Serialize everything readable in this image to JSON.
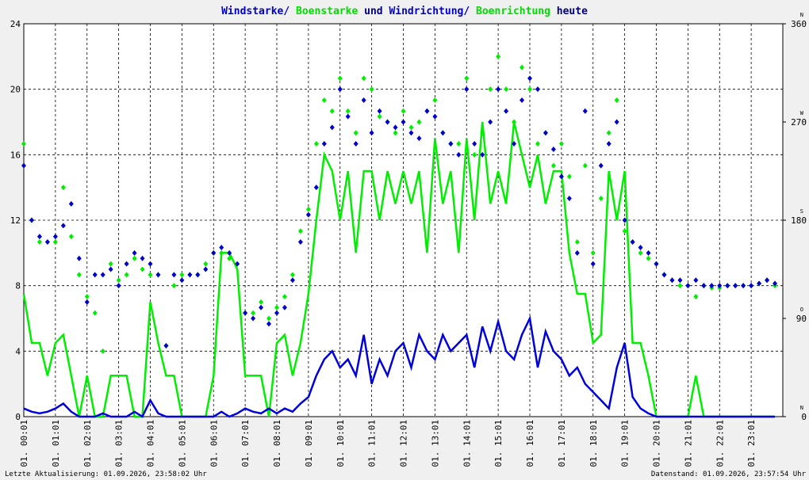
{
  "chart_data": {
    "type": "line",
    "title_parts": [
      {
        "text": "Windstarke/",
        "color": "#0000cc"
      },
      {
        "text": "Boenstarke",
        "color": "#00dd00"
      },
      {
        "text": "und",
        "color": "#000080"
      },
      {
        "text": "Windrichtung/",
        "color": "#0000cc"
      },
      {
        "text": "Boenrichtung",
        "color": "#00dd00"
      },
      {
        "text": "heute",
        "color": "#000080"
      }
    ],
    "footer_left": "Letzte Aktualisierung: 01.09.2026, 23:58:02 Uhr",
    "footer_right": "Datenstand: 01.09.2026, 23:57:54 Uhr",
    "grid": true,
    "xlim": [
      0,
      24
    ],
    "xticks": [
      {
        "value": 0,
        "label": "01. 00:01"
      },
      {
        "value": 1,
        "label": "01. 01:01"
      },
      {
        "value": 2,
        "label": "01. 02:01"
      },
      {
        "value": 3,
        "label": "01. 03:01"
      },
      {
        "value": 4,
        "label": "01. 04:01"
      },
      {
        "value": 5,
        "label": "01. 05:01"
      },
      {
        "value": 6,
        "label": "01. 06:01"
      },
      {
        "value": 7,
        "label": "01. 07:01"
      },
      {
        "value": 8,
        "label": "01. 08:01"
      },
      {
        "value": 9,
        "label": "01. 09:01"
      },
      {
        "value": 10,
        "label": "01. 10:01"
      },
      {
        "value": 11,
        "label": "01. 11:01"
      },
      {
        "value": 12,
        "label": "01. 12:01"
      },
      {
        "value": 13,
        "label": "01. 13:01"
      },
      {
        "value": 14,
        "label": "01. 14:01"
      },
      {
        "value": 15,
        "label": "01. 15:01"
      },
      {
        "value": 16,
        "label": "01. 16:01"
      },
      {
        "value": 17,
        "label": "01. 17:01"
      },
      {
        "value": 18,
        "label": "01. 18:01"
      },
      {
        "value": 19,
        "label": "01. 19:01"
      },
      {
        "value": 20,
        "label": "01. 20:01"
      },
      {
        "value": 21,
        "label": "01. 21:01"
      },
      {
        "value": 22,
        "label": "01. 22:01"
      },
      {
        "value": 23,
        "label": "01. 23:01"
      }
    ],
    "ylim": [
      0,
      24
    ],
    "yticks": [
      0,
      4,
      8,
      12,
      16,
      20,
      24
    ],
    "y2lim": [
      0,
      360
    ],
    "y2ticks": [
      0,
      90,
      180,
      270,
      360
    ],
    "y2tick_directions": [
      "N",
      "O",
      "S",
      "W",
      "N"
    ],
    "x": [
      0,
      0.25,
      0.5,
      0.75,
      1,
      1.25,
      1.5,
      1.75,
      2,
      2.25,
      2.5,
      2.75,
      3,
      3.25,
      3.5,
      3.75,
      4,
      4.25,
      4.5,
      4.75,
      5,
      5.25,
      5.5,
      5.75,
      6,
      6.25,
      6.5,
      6.75,
      7,
      7.25,
      7.5,
      7.75,
      8,
      8.25,
      8.5,
      8.75,
      9,
      9.25,
      9.5,
      9.75,
      10,
      10.25,
      10.5,
      10.75,
      11,
      11.25,
      11.5,
      11.75,
      12,
      12.25,
      12.5,
      12.75,
      13,
      13.25,
      13.5,
      13.75,
      14,
      14.25,
      14.5,
      14.75,
      15,
      15.25,
      15.5,
      15.75,
      16,
      16.25,
      16.5,
      16.75,
      17,
      17.25,
      17.5,
      17.75,
      18,
      18.25,
      18.5,
      18.75,
      19,
      19.25,
      19.5,
      19.75,
      20,
      20.25,
      20.5,
      20.75,
      21,
      21.25,
      21.5,
      21.75,
      22,
      22.25,
      22.5,
      22.75,
      23,
      23.25,
      23.5,
      23.75
    ],
    "series": [
      {
        "name": "Boenstarke",
        "kind": "line",
        "color": "#00ee00",
        "values": [
          7.5,
          4.5,
          4.5,
          2.5,
          4.5,
          5,
          2.5,
          0,
          2.5,
          0,
          0,
          2.5,
          2.5,
          2.5,
          0,
          0,
          7,
          4.5,
          2.5,
          2.5,
          0,
          0,
          0,
          0,
          2.5,
          10,
          10,
          9,
          2.5,
          2.5,
          2.5,
          0,
          4.5,
          5,
          2.5,
          4.5,
          7.5,
          12,
          16,
          15,
          12,
          15,
          10,
          15,
          15,
          12,
          15,
          13,
          15,
          13,
          15,
          10,
          17,
          13,
          15,
          10,
          17,
          12,
          18,
          13,
          15,
          13,
          18,
          16,
          14,
          16,
          13,
          15,
          15,
          10,
          7.5,
          7.5,
          4.5,
          5,
          15,
          12,
          15,
          4.5,
          4.5,
          2.5,
          0,
          0,
          0,
          0,
          0,
          2.5,
          0,
          0,
          0,
          0,
          0,
          0,
          0,
          0,
          0,
          0
        ]
      },
      {
        "name": "Windstarke",
        "kind": "line",
        "color": "#0000dd",
        "values": [
          0.5,
          0.3,
          0.2,
          0.3,
          0.5,
          0.8,
          0.3,
          0,
          0,
          0,
          0.2,
          0,
          0,
          0,
          0.3,
          0,
          1,
          0.2,
          0,
          0,
          0,
          0,
          0,
          0,
          0,
          0.3,
          0,
          0.2,
          0.5,
          0.3,
          0.2,
          0.5,
          0.2,
          0.5,
          0.3,
          0.8,
          1.2,
          2.5,
          3.5,
          4,
          3,
          3.5,
          2.5,
          5,
          2,
          3.5,
          2.5,
          4,
          4.5,
          3,
          5,
          4,
          3.5,
          5,
          4,
          4.5,
          5,
          3,
          5.5,
          4,
          5.8,
          4,
          3.5,
          5,
          6,
          3,
          5.2,
          4,
          3.5,
          2.5,
          3,
          2,
          1.5,
          1,
          0.5,
          3,
          4.5,
          1.2,
          0.5,
          0.2,
          0,
          0,
          0,
          0,
          0,
          0,
          0,
          0,
          0,
          0,
          0,
          0,
          0,
          0,
          0,
          0
        ]
      },
      {
        "name": "Boenrichtung",
        "kind": "points",
        "axis": "y2",
        "color": "#00ee00",
        "values": [
          250,
          180,
          160,
          160,
          160,
          210,
          165,
          130,
          110,
          95,
          60,
          140,
          125,
          130,
          145,
          135,
          130,
          130,
          65,
          120,
          130,
          130,
          130,
          140,
          150,
          150,
          145,
          140,
          95,
          95,
          105,
          90,
          100,
          110,
          130,
          170,
          190,
          250,
          290,
          280,
          310,
          280,
          260,
          310,
          300,
          275,
          270,
          260,
          280,
          265,
          270,
          280,
          290,
          260,
          250,
          250,
          310,
          240,
          260,
          300,
          330,
          300,
          270,
          320,
          300,
          250,
          260,
          230,
          250,
          220,
          160,
          230,
          150,
          200,
          260,
          290,
          170,
          160,
          150,
          145,
          140,
          130,
          125,
          120,
          120,
          110,
          120,
          118,
          118,
          120,
          120,
          120,
          120,
          122,
          125,
          120
        ]
      },
      {
        "name": "Windrichtung",
        "kind": "points",
        "axis": "y2",
        "color": "#0000cc",
        "values": [
          230,
          180,
          165,
          160,
          165,
          175,
          195,
          145,
          105,
          130,
          130,
          135,
          120,
          140,
          150,
          145,
          140,
          130,
          65,
          130,
          125,
          130,
          130,
          135,
          150,
          155,
          150,
          140,
          95,
          90,
          100,
          85,
          95,
          100,
          125,
          160,
          185,
          210,
          250,
          265,
          300,
          275,
          250,
          290,
          260,
          280,
          270,
          265,
          270,
          260,
          255,
          280,
          275,
          260,
          250,
          240,
          300,
          250,
          240,
          270,
          300,
          280,
          250,
          290,
          310,
          300,
          260,
          245,
          220,
          200,
          150,
          280,
          140,
          230,
          250,
          270,
          180,
          160,
          155,
          150,
          140,
          130,
          125,
          125,
          120,
          125,
          120,
          120,
          120,
          120,
          120,
          120,
          120,
          122,
          125,
          122
        ]
      }
    ]
  }
}
